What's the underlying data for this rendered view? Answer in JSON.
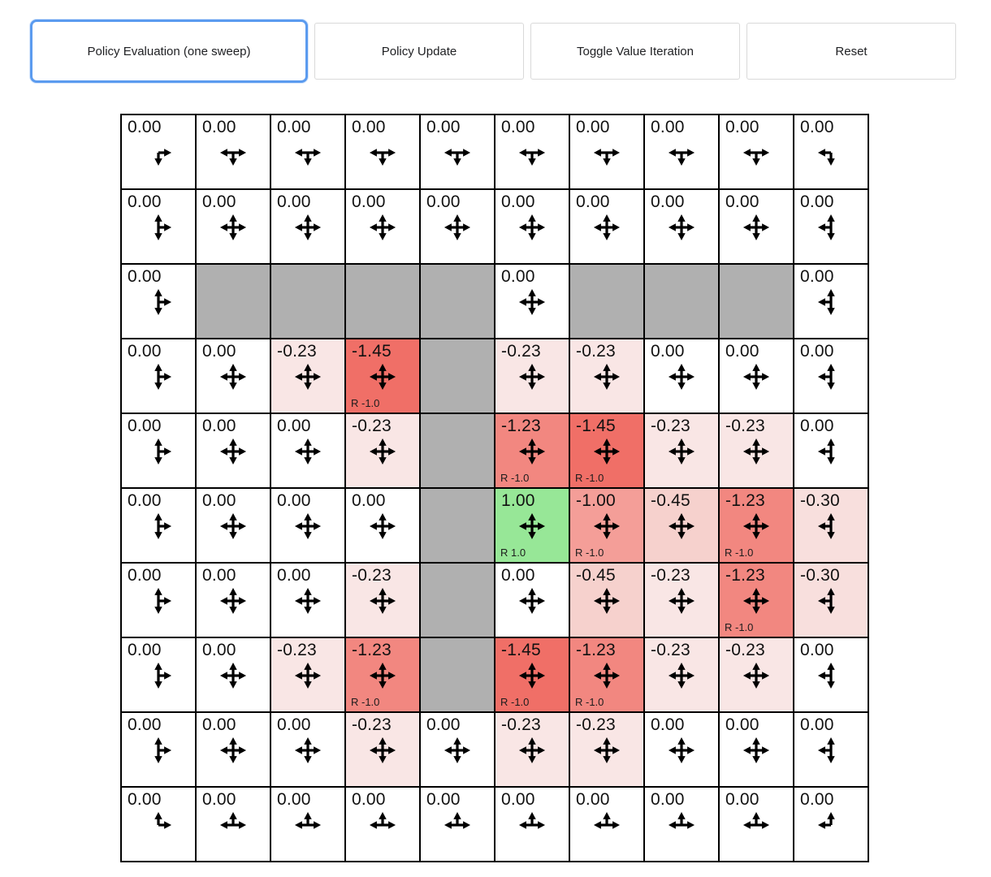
{
  "toolbar": {
    "buttons": [
      {
        "label": "Policy Evaluation (one sweep)",
        "active": true
      },
      {
        "label": "Policy Update",
        "active": false
      },
      {
        "label": "Toggle Value Iteration",
        "active": false
      },
      {
        "label": "Reset",
        "active": false
      }
    ]
  },
  "colors": {
    "accent_focus": "#5b9bef",
    "grid_line": "#000000",
    "palette": {
      "w": "#ffffff",
      "wall": "#b0b0b0",
      "p23": "#f9e6e5",
      "p30": "#f8dfdd",
      "p45": "#f6d1cd",
      "r100": "#f49e98",
      "r123": "#f28780",
      "r145": "#f06f67",
      "g": "#97e797"
    }
  },
  "grid": {
    "rows": 10,
    "cols": 10,
    "cells": [
      [
        {
          "v": "0.00",
          "a": "dr",
          "c": "w"
        },
        {
          "v": "0.00",
          "a": "ldr",
          "c": "w"
        },
        {
          "v": "0.00",
          "a": "ldr",
          "c": "w"
        },
        {
          "v": "0.00",
          "a": "ldr",
          "c": "w"
        },
        {
          "v": "0.00",
          "a": "ldr",
          "c": "w"
        },
        {
          "v": "0.00",
          "a": "ldr",
          "c": "w"
        },
        {
          "v": "0.00",
          "a": "ldr",
          "c": "w"
        },
        {
          "v": "0.00",
          "a": "ldr",
          "c": "w"
        },
        {
          "v": "0.00",
          "a": "ldr",
          "c": "w"
        },
        {
          "v": "0.00",
          "a": "ld",
          "c": "w"
        }
      ],
      [
        {
          "v": "0.00",
          "a": "udr",
          "c": "w"
        },
        {
          "v": "0.00",
          "a": "udlr",
          "c": "w"
        },
        {
          "v": "0.00",
          "a": "udlr",
          "c": "w"
        },
        {
          "v": "0.00",
          "a": "udlr",
          "c": "w"
        },
        {
          "v": "0.00",
          "a": "udlr",
          "c": "w"
        },
        {
          "v": "0.00",
          "a": "udlr",
          "c": "w"
        },
        {
          "v": "0.00",
          "a": "udlr",
          "c": "w"
        },
        {
          "v": "0.00",
          "a": "udlr",
          "c": "w"
        },
        {
          "v": "0.00",
          "a": "udlr",
          "c": "w"
        },
        {
          "v": "0.00",
          "a": "udl",
          "c": "w"
        }
      ],
      [
        {
          "v": "0.00",
          "a": "udr",
          "c": "w"
        },
        {
          "wall": true
        },
        {
          "wall": true
        },
        {
          "wall": true
        },
        {
          "wall": true
        },
        {
          "v": "0.00",
          "a": "udlr",
          "c": "w"
        },
        {
          "wall": true
        },
        {
          "wall": true
        },
        {
          "wall": true
        },
        {
          "v": "0.00",
          "a": "udl",
          "c": "w"
        }
      ],
      [
        {
          "v": "0.00",
          "a": "udr",
          "c": "w"
        },
        {
          "v": "0.00",
          "a": "udlr",
          "c": "w"
        },
        {
          "v": "-0.23",
          "a": "udlr",
          "c": "p23"
        },
        {
          "v": "-1.45",
          "a": "udlr",
          "c": "r145",
          "r": "R -1.0"
        },
        {
          "wall": true
        },
        {
          "v": "-0.23",
          "a": "udlr",
          "c": "p23"
        },
        {
          "v": "-0.23",
          "a": "udlr",
          "c": "p23"
        },
        {
          "v": "0.00",
          "a": "udlr",
          "c": "w"
        },
        {
          "v": "0.00",
          "a": "udlr",
          "c": "w"
        },
        {
          "v": "0.00",
          "a": "udl",
          "c": "w"
        }
      ],
      [
        {
          "v": "0.00",
          "a": "udr",
          "c": "w"
        },
        {
          "v": "0.00",
          "a": "udlr",
          "c": "w"
        },
        {
          "v": "0.00",
          "a": "udlr",
          "c": "w"
        },
        {
          "v": "-0.23",
          "a": "udlr",
          "c": "p23"
        },
        {
          "wall": true
        },
        {
          "v": "-1.23",
          "a": "udlr",
          "c": "r123",
          "r": "R -1.0"
        },
        {
          "v": "-1.45",
          "a": "udlr",
          "c": "r145",
          "r": "R -1.0"
        },
        {
          "v": "-0.23",
          "a": "udlr",
          "c": "p23"
        },
        {
          "v": "-0.23",
          "a": "udlr",
          "c": "p23"
        },
        {
          "v": "0.00",
          "a": "udl",
          "c": "w"
        }
      ],
      [
        {
          "v": "0.00",
          "a": "udr",
          "c": "w"
        },
        {
          "v": "0.00",
          "a": "udlr",
          "c": "w"
        },
        {
          "v": "0.00",
          "a": "udlr",
          "c": "w"
        },
        {
          "v": "0.00",
          "a": "udlr",
          "c": "w"
        },
        {
          "wall": true
        },
        {
          "v": "1.00",
          "a": "udlr",
          "c": "g",
          "r": "R 1.0"
        },
        {
          "v": "-1.00",
          "a": "udlr",
          "c": "r100",
          "r": "R -1.0"
        },
        {
          "v": "-0.45",
          "a": "udlr",
          "c": "p45"
        },
        {
          "v": "-1.23",
          "a": "udlr",
          "c": "r123",
          "r": "R -1.0"
        },
        {
          "v": "-0.30",
          "a": "udl",
          "c": "p30"
        }
      ],
      [
        {
          "v": "0.00",
          "a": "udr",
          "c": "w"
        },
        {
          "v": "0.00",
          "a": "udlr",
          "c": "w"
        },
        {
          "v": "0.00",
          "a": "udlr",
          "c": "w"
        },
        {
          "v": "-0.23",
          "a": "udlr",
          "c": "p23"
        },
        {
          "wall": true
        },
        {
          "v": "0.00",
          "a": "udlr",
          "c": "w"
        },
        {
          "v": "-0.45",
          "a": "udlr",
          "c": "p45"
        },
        {
          "v": "-0.23",
          "a": "udlr",
          "c": "p23"
        },
        {
          "v": "-1.23",
          "a": "udlr",
          "c": "r123",
          "r": "R -1.0"
        },
        {
          "v": "-0.30",
          "a": "udl",
          "c": "p30"
        }
      ],
      [
        {
          "v": "0.00",
          "a": "udr",
          "c": "w"
        },
        {
          "v": "0.00",
          "a": "udlr",
          "c": "w"
        },
        {
          "v": "-0.23",
          "a": "udlr",
          "c": "p23"
        },
        {
          "v": "-1.23",
          "a": "udlr",
          "c": "r123",
          "r": "R -1.0"
        },
        {
          "wall": true
        },
        {
          "v": "-1.45",
          "a": "udlr",
          "c": "r145",
          "r": "R -1.0"
        },
        {
          "v": "-1.23",
          "a": "udlr",
          "c": "r123",
          "r": "R -1.0"
        },
        {
          "v": "-0.23",
          "a": "udlr",
          "c": "p23"
        },
        {
          "v": "-0.23",
          "a": "udlr",
          "c": "p23"
        },
        {
          "v": "0.00",
          "a": "udl",
          "c": "w"
        }
      ],
      [
        {
          "v": "0.00",
          "a": "udr",
          "c": "w"
        },
        {
          "v": "0.00",
          "a": "udlr",
          "c": "w"
        },
        {
          "v": "0.00",
          "a": "udlr",
          "c": "w"
        },
        {
          "v": "-0.23",
          "a": "udlr",
          "c": "p23"
        },
        {
          "v": "0.00",
          "a": "udlr",
          "c": "w"
        },
        {
          "v": "-0.23",
          "a": "udlr",
          "c": "p23"
        },
        {
          "v": "-0.23",
          "a": "udlr",
          "c": "p23"
        },
        {
          "v": "0.00",
          "a": "udlr",
          "c": "w"
        },
        {
          "v": "0.00",
          "a": "udlr",
          "c": "w"
        },
        {
          "v": "0.00",
          "a": "udl",
          "c": "w"
        }
      ],
      [
        {
          "v": "0.00",
          "a": "ur",
          "c": "w"
        },
        {
          "v": "0.00",
          "a": "lur",
          "c": "w"
        },
        {
          "v": "0.00",
          "a": "lur",
          "c": "w"
        },
        {
          "v": "0.00",
          "a": "lur",
          "c": "w"
        },
        {
          "v": "0.00",
          "a": "lur",
          "c": "w"
        },
        {
          "v": "0.00",
          "a": "lur",
          "c": "w"
        },
        {
          "v": "0.00",
          "a": "lur",
          "c": "w"
        },
        {
          "v": "0.00",
          "a": "lur",
          "c": "w"
        },
        {
          "v": "0.00",
          "a": "lur",
          "c": "w"
        },
        {
          "v": "0.00",
          "a": "ul",
          "c": "w"
        }
      ]
    ]
  }
}
